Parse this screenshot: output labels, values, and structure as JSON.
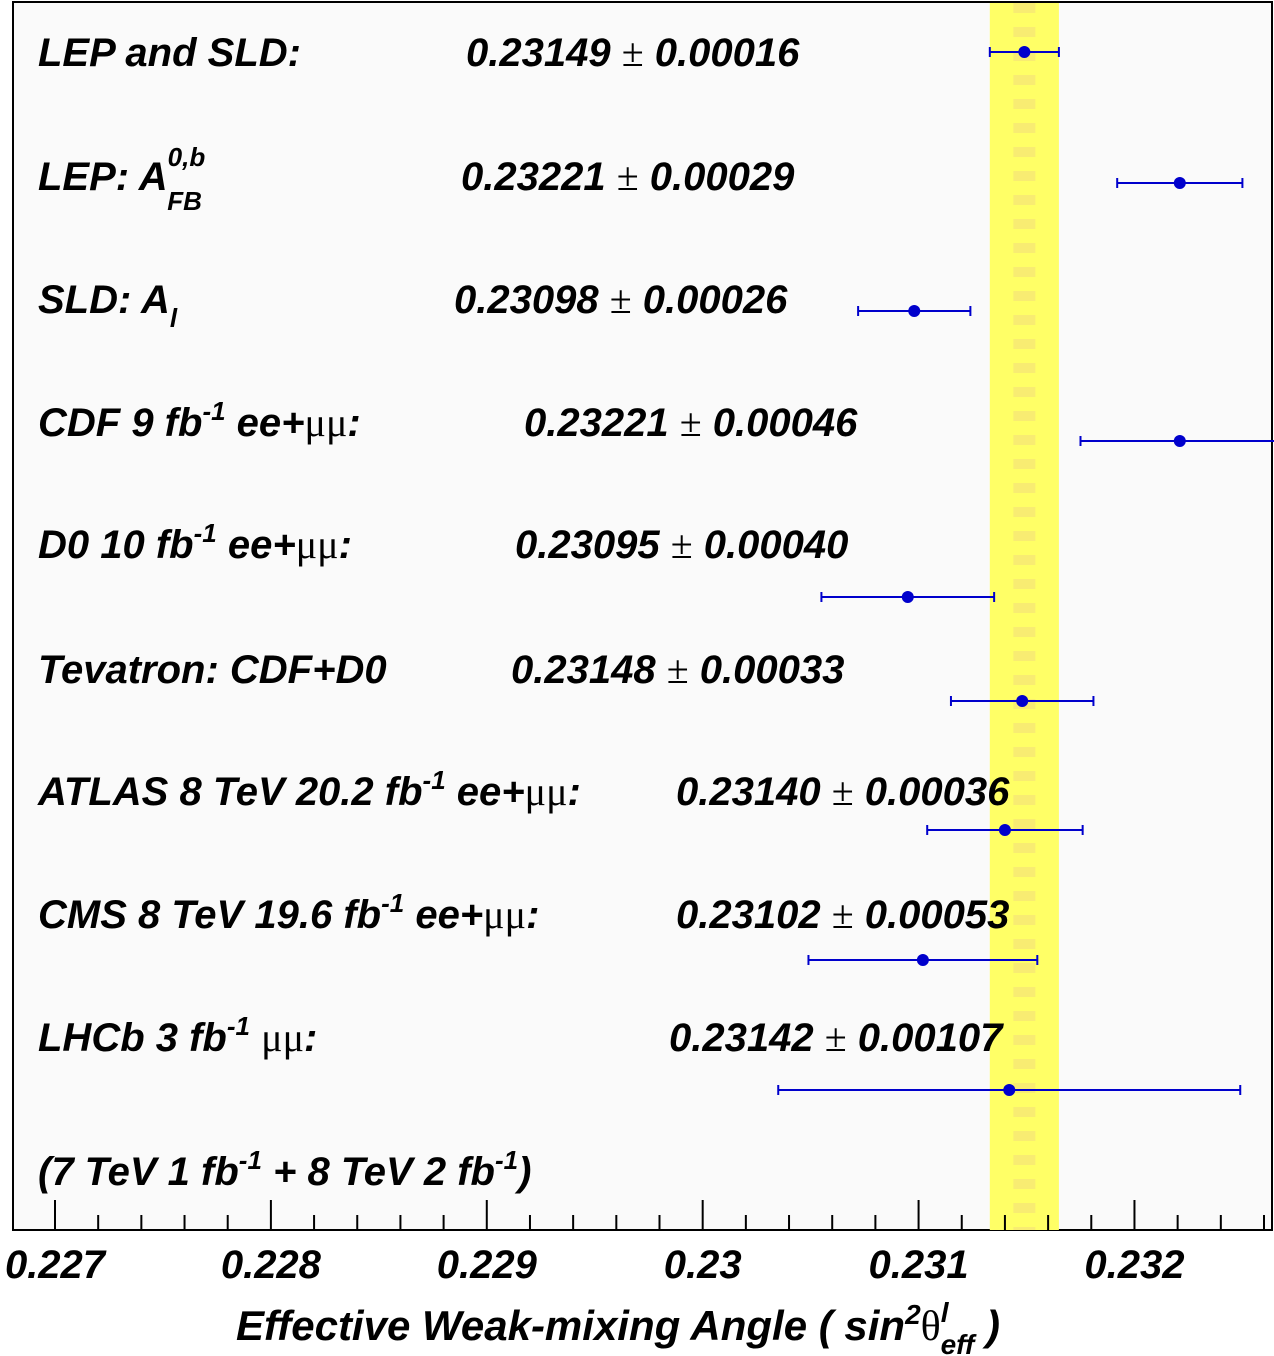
{
  "chart_data": {
    "type": "scatter",
    "xlabel": {
      "main": "Effective Weak-mixing Angle ( sin",
      "sup": "2",
      "theta": "θ",
      "theta_sup": "l",
      "sub": "eff",
      "close": " )"
    },
    "xlim": [
      0.227,
      0.2326
    ],
    "x_ticks": [
      {
        "value": 0.227,
        "label": "0.227"
      },
      {
        "value": 0.228,
        "label": "0.228"
      },
      {
        "value": 0.229,
        "label": "0.229"
      },
      {
        "value": 0.23,
        "label": "0.23"
      },
      {
        "value": 0.231,
        "label": "0.231"
      },
      {
        "value": 0.232,
        "label": "0.232"
      }
    ],
    "minor_tick_step": 0.0002,
    "band": {
      "center": 0.23149,
      "error": 0.00016,
      "color": "#ffff66"
    },
    "marker_color": "#0000cc",
    "measurements": [
      {
        "label": "LEP and SLD:",
        "value": 0.23149,
        "error": 0.00016,
        "value_text": "0.23149",
        "error_text": "0.00016"
      },
      {
        "label": "LEP: A",
        "label_sup": "0,b",
        "label_sub": "FB",
        "value": 0.23221,
        "error": 0.00029,
        "value_text": "0.23221",
        "error_text": "0.00029"
      },
      {
        "label": "SLD: A",
        "label_sub": "l",
        "value": 0.23098,
        "error": 0.00026,
        "value_text": "0.23098",
        "error_text": "0.00026"
      },
      {
        "label": "CDF 9 fb",
        "label_sup": "-1",
        "label_tail": " ee+",
        "label_mu": "μμ",
        "label_end": ":",
        "value": 0.23221,
        "error": 0.00046,
        "value_text": "0.23221",
        "error_text": "0.00046"
      },
      {
        "label": "D0 10 fb",
        "label_sup": "-1",
        "label_tail": " ee+",
        "label_mu": "μμ",
        "label_end": ":",
        "value": 0.23095,
        "error": 0.0004,
        "value_text": "0.23095",
        "error_text": "0.00040"
      },
      {
        "label": "Tevatron: CDF+D0",
        "value": 0.23148,
        "error": 0.00033,
        "value_text": "0.23148",
        "error_text": "0.00033"
      },
      {
        "label": "ATLAS 8 TeV 20.2 fb",
        "label_sup": "-1",
        "label_tail": " ee+",
        "label_mu": "μμ",
        "label_end": ":",
        "value": 0.2314,
        "error": 0.00036,
        "value_text": "0.23140",
        "error_text": "0.00036"
      },
      {
        "label": "CMS 8 TeV 19.6 fb",
        "label_sup": "-1",
        "label_tail": " ee+",
        "label_mu": "μμ",
        "label_end": ":",
        "value": 0.23102,
        "error": 0.00053,
        "value_text": "0.23102",
        "error_text": "0.00053"
      },
      {
        "label": "LHCb 3 fb",
        "label_sup": "-1",
        "label_tail": "  ",
        "label_mu": "μμ",
        "label_end": ":",
        "value": 0.23142,
        "error": 0.00107,
        "value_text": "0.23142",
        "error_text": "0.00107"
      }
    ],
    "footnote": {
      "p1": "(7 TeV 1 fb",
      "s1": "-1",
      "p2": " + 8 TeV 2 fb",
      "s2": "-1",
      "p3": ")"
    },
    "pm_symbol": "±"
  }
}
